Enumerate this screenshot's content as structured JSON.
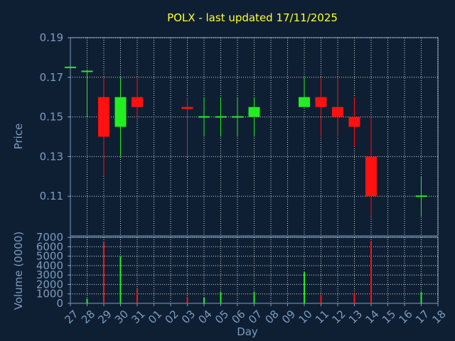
{
  "chart_data": {
    "type": "candlestick",
    "title": "POLX - last updated 17/11/2025",
    "xlabel": "Day",
    "categories": [
      "27",
      "28",
      "29",
      "30",
      "31",
      "01",
      "02",
      "03",
      "04",
      "05",
      "06",
      "07",
      "08",
      "09",
      "10",
      "11",
      "12",
      "13",
      "14",
      "15",
      "16",
      "17",
      "18"
    ],
    "price": {
      "ylabel": "Price",
      "ylim": [
        0.09,
        0.19
      ],
      "ticks": [
        "0.19",
        "0.17",
        "0.15",
        "0.13",
        "0.11"
      ],
      "tick_values": [
        0.19,
        0.17,
        0.15,
        0.13,
        0.11
      ],
      "candles": [
        {
          "day": "27",
          "open": 0.175,
          "close": 0.175,
          "high": 0.175,
          "low": 0.175
        },
        {
          "day": "28",
          "open": 0.173,
          "close": 0.173,
          "high": 0.173,
          "low": 0.15
        },
        {
          "day": "29",
          "open": 0.16,
          "close": 0.14,
          "high": 0.17,
          "low": 0.12
        },
        {
          "day": "30",
          "open": 0.145,
          "close": 0.16,
          "high": 0.17,
          "low": 0.13
        },
        {
          "day": "31",
          "open": 0.16,
          "close": 0.155,
          "high": 0.17,
          "low": 0.15
        },
        {
          "day": "03",
          "open": 0.155,
          "close": 0.154,
          "high": 0.16,
          "low": 0.13
        },
        {
          "day": "04",
          "open": 0.15,
          "close": 0.15,
          "high": 0.16,
          "low": 0.14
        },
        {
          "day": "05",
          "open": 0.15,
          "close": 0.15,
          "high": 0.16,
          "low": 0.14
        },
        {
          "day": "06",
          "open": 0.15,
          "close": 0.15,
          "high": 0.16,
          "low": 0.14
        },
        {
          "day": "07",
          "open": 0.15,
          "close": 0.155,
          "high": 0.16,
          "low": 0.14
        },
        {
          "day": "10",
          "open": 0.155,
          "close": 0.16,
          "high": 0.17,
          "low": 0.155
        },
        {
          "day": "11",
          "open": 0.16,
          "close": 0.155,
          "high": 0.17,
          "low": 0.14
        },
        {
          "day": "12",
          "open": 0.155,
          "close": 0.15,
          "high": 0.17,
          "low": 0.14
        },
        {
          "day": "13",
          "open": 0.15,
          "close": 0.145,
          "high": 0.16,
          "low": 0.135
        },
        {
          "day": "14",
          "open": 0.13,
          "close": 0.11,
          "high": 0.15,
          "low": 0.1
        },
        {
          "day": "17",
          "open": 0.11,
          "close": 0.11,
          "high": 0.12,
          "low": 0.1
        }
      ]
    },
    "volume": {
      "ylabel": "Volume (0000)",
      "ylim": [
        0,
        7000
      ],
      "ticks": [
        "7000",
        "6000",
        "5000",
        "4000",
        "3000",
        "2000",
        "1000",
        "0"
      ],
      "tick_values": [
        7000,
        6000,
        5000,
        4000,
        3000,
        2000,
        1000,
        0
      ],
      "bars": [
        {
          "day": "28",
          "value": 500,
          "color": "up"
        },
        {
          "day": "29",
          "value": 6500,
          "color": "down"
        },
        {
          "day": "30",
          "value": 5000,
          "color": "up"
        },
        {
          "day": "31",
          "value": 1500,
          "color": "down"
        },
        {
          "day": "03",
          "value": 700,
          "color": "down"
        },
        {
          "day": "04",
          "value": 600,
          "color": "up"
        },
        {
          "day": "05",
          "value": 1200,
          "color": "up"
        },
        {
          "day": "07",
          "value": 1200,
          "color": "up"
        },
        {
          "day": "10",
          "value": 3300,
          "color": "up"
        },
        {
          "day": "11",
          "value": 900,
          "color": "down"
        },
        {
          "day": "13",
          "value": 1100,
          "color": "down"
        },
        {
          "day": "14",
          "value": 6600,
          "color": "down"
        },
        {
          "day": "17",
          "value": 1200,
          "color": "up"
        }
      ]
    },
    "colors": {
      "up": "#22ee22",
      "down": "#ff1111",
      "background": "#0f1f33",
      "title": "#ffff33",
      "axis": "#7a9cc0"
    },
    "grid": true
  }
}
